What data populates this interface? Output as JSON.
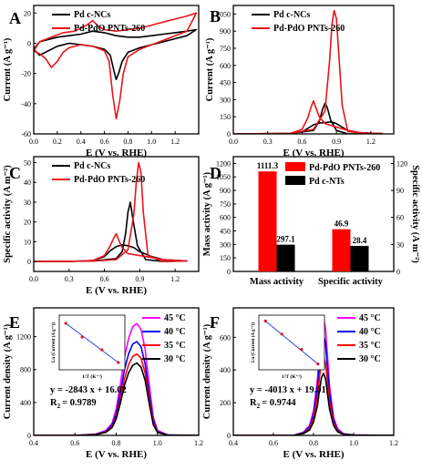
{
  "chart_data": [
    {
      "panel": "A",
      "type": "line",
      "xlabel": "E (V vs. RHE)",
      "ylabel": "Current (A g⁻¹)",
      "xlim": [
        0.0,
        1.4
      ],
      "ylim": [
        -60,
        25
      ],
      "xticks": [
        "0.0",
        "0.2",
        "0.4",
        "0.6",
        "0.8",
        "1.0",
        "1.2"
      ],
      "yticks": [
        "-60",
        "-40",
        "-20",
        "0",
        "20"
      ],
      "legend": "top-left",
      "series": [
        {
          "name": "Pd c-NCs",
          "color": "#000000",
          "x": [
            0.0,
            0.05,
            0.1,
            0.2,
            0.3,
            0.4,
            0.5,
            0.6,
            0.7,
            0.8,
            0.9,
            1.0,
            1.1,
            1.2,
            1.3,
            1.38,
            1.3,
            1.2,
            1.1,
            1.0,
            0.9,
            0.8,
            0.75,
            0.72,
            0.7,
            0.68,
            0.65,
            0.6,
            0.5,
            0.4,
            0.3,
            0.2,
            0.1,
            0.05,
            0.0
          ],
          "y": [
            -4,
            1,
            2,
            4,
            5,
            6,
            8,
            7,
            5,
            4,
            4,
            5,
            6,
            7,
            8,
            9,
            5,
            3,
            1,
            -1,
            -3,
            -6,
            -12,
            -20,
            -24,
            -18,
            -8,
            -4,
            -2,
            -1,
            0,
            -2,
            -6,
            -8,
            -4
          ]
        },
        {
          "name": "Pd-PdO PNTs-260",
          "color": "#e8141b",
          "x": [
            0.0,
            0.05,
            0.15,
            0.25,
            0.35,
            0.45,
            0.5,
            0.55,
            0.6,
            0.7,
            0.8,
            0.9,
            1.0,
            1.1,
            1.2,
            1.3,
            1.38,
            1.3,
            1.2,
            1.1,
            1.0,
            0.9,
            0.8,
            0.76,
            0.73,
            0.7,
            0.67,
            0.64,
            0.6,
            0.5,
            0.4,
            0.3,
            0.25,
            0.2,
            0.15,
            0.1,
            0.05,
            0.0
          ],
          "y": [
            -5,
            1,
            4,
            7,
            8,
            12,
            15,
            11,
            9,
            8,
            9,
            10,
            12,
            14,
            16,
            18,
            20,
            8,
            5,
            2,
            -1,
            -4,
            -9,
            -20,
            -38,
            -50,
            -34,
            -12,
            -5,
            -2,
            -1,
            -3,
            -6,
            -12,
            -16,
            -10,
            -7,
            -5
          ]
        }
      ]
    },
    {
      "panel": "B",
      "type": "line",
      "xlabel": "E (V vs. RHE)",
      "ylabel": "Current (A g⁻¹)",
      "xlim": [
        0.0,
        1.4
      ],
      "ylim": [
        0,
        1125
      ],
      "xticks": [
        "0.0",
        "0.3",
        "0.6",
        "0.9",
        "1.2"
      ],
      "yticks": [
        "0",
        "150",
        "300",
        "450",
        "600",
        "750",
        "900",
        "1050"
      ],
      "legend": "top-left",
      "series": [
        {
          "name": "Pd c-NCs",
          "color": "#000000",
          "x": [
            0.0,
            0.3,
            0.5,
            0.6,
            0.65,
            0.7,
            0.75,
            0.8,
            0.85,
            0.9,
            0.95,
            1.0,
            1.1,
            1.2,
            1.3,
            1.2,
            1.0,
            0.9,
            0.85,
            0.82,
            0.8,
            0.78,
            0.75,
            0.7,
            0.5,
            0.3,
            0.0
          ],
          "y": [
            0,
            0,
            4,
            18,
            48,
            80,
            95,
            100,
            105,
            90,
            60,
            30,
            12,
            6,
            3,
            0,
            0,
            30,
            120,
            230,
            270,
            220,
            110,
            30,
            5,
            2,
            0
          ]
        },
        {
          "name": "Pd-PdO PNTs-260",
          "color": "#e8141b",
          "x": [
            0.0,
            0.3,
            0.5,
            0.6,
            0.65,
            0.68,
            0.7,
            0.72,
            0.75,
            0.8,
            0.9,
            1.0,
            1.1,
            1.2,
            1.3,
            1.2,
            1.0,
            0.95,
            0.92,
            0.9,
            0.88,
            0.86,
            0.84,
            0.8,
            0.7,
            0.5,
            0.0
          ],
          "y": [
            0,
            0,
            5,
            40,
            140,
            240,
            290,
            230,
            150,
            90,
            60,
            30,
            12,
            6,
            3,
            0,
            20,
            250,
            700,
            1010,
            1080,
            950,
            640,
            200,
            40,
            5,
            0
          ]
        }
      ]
    },
    {
      "panel": "C",
      "type": "line",
      "xlabel": "E (V vs. RHE)",
      "ylabel": "Specific activity (A m⁻²)",
      "xlim": [
        0.0,
        1.4
      ],
      "ylim": [
        -5,
        53
      ],
      "xticks": [
        "0.0",
        "0.3",
        "0.6",
        "0.9",
        "1.2"
      ],
      "yticks": [
        "0",
        "10",
        "20",
        "30",
        "40",
        "50"
      ],
      "legend": "top-left",
      "series": [
        {
          "name": "Pd c-NCs",
          "color": "#000000",
          "x": [
            0.0,
            0.3,
            0.5,
            0.6,
            0.65,
            0.7,
            0.75,
            0.8,
            0.85,
            0.9,
            1.0,
            1.1,
            1.3,
            1.1,
            0.95,
            0.88,
            0.84,
            0.82,
            0.8,
            0.78,
            0.75,
            0.7,
            0.5,
            0.0
          ],
          "y": [
            0,
            0,
            0.5,
            2.5,
            5.5,
            7.5,
            8.5,
            8,
            7,
            5,
            2.5,
            1,
            0.3,
            0,
            1,
            8,
            22,
            30,
            25,
            14,
            5,
            1.5,
            0.3,
            0
          ]
        },
        {
          "name": "Pd-PdO PNTs-260",
          "color": "#e8141b",
          "x": [
            0.0,
            0.3,
            0.5,
            0.6,
            0.65,
            0.68,
            0.7,
            0.72,
            0.75,
            0.8,
            0.9,
            1.0,
            1.1,
            1.3,
            1.1,
            0.97,
            0.93,
            0.91,
            0.89,
            0.87,
            0.85,
            0.8,
            0.7,
            0.5,
            0.0
          ],
          "y": [
            0,
            0,
            0.5,
            3,
            8,
            12,
            14,
            11,
            7,
            4,
            3,
            2,
            1,
            0.3,
            0,
            3,
            25,
            45,
            50,
            40,
            24,
            6,
            1,
            0.2,
            0
          ]
        }
      ]
    },
    {
      "panel": "D",
      "type": "bar",
      "categories": [
        "Mass activity",
        "Specific activity"
      ],
      "ylabel": "Mass activity (A g⁻¹)",
      "y2label": "Specific activity (A m⁻²)",
      "ylim": [
        0,
        1275
      ],
      "y2lim": [
        0,
        127.5
      ],
      "yticks": [
        "0",
        "150",
        "300",
        "450",
        "600",
        "750",
        "900",
        "1050",
        "1200"
      ],
      "y2ticks": [
        "0",
        "30",
        "60",
        "90",
        "120"
      ],
      "legend": "top-right",
      "series": [
        {
          "name": "Pd-PdO PNTs-260",
          "color": "#ff0000",
          "values": [
            1111.3,
            46.9
          ],
          "labels": [
            "1111.3",
            "46.9"
          ]
        },
        {
          "name": "Pd c-NTs",
          "color": "#000000",
          "values": [
            297.1,
            28.4
          ],
          "labels": [
            "297.1",
            "28.4"
          ]
        }
      ]
    },
    {
      "panel": "E",
      "type": "line",
      "xlabel": "E (V vs. RHE)",
      "ylabel": "Current density (A g⁻¹)",
      "xlim": [
        0.4,
        1.2
      ],
      "ylim": [
        0,
        1550
      ],
      "xticks": [
        "0.4",
        "0.6",
        "0.8",
        "1.0",
        "1.2"
      ],
      "yticks": [
        "0",
        "400",
        "800",
        "1200"
      ],
      "legend": "top-right",
      "series": [
        {
          "name": "45 °C",
          "color": "#ff00ff",
          "x": [
            0.4,
            0.6,
            0.7,
            0.75,
            0.78,
            0.8,
            0.82,
            0.84,
            0.86,
            0.88,
            0.9,
            0.92,
            0.94,
            0.96,
            0.98,
            1.0,
            1.05,
            1.2
          ],
          "y": [
            0,
            0,
            15,
            60,
            150,
            320,
            620,
            950,
            1180,
            1320,
            1360,
            1290,
            1050,
            620,
            220,
            60,
            5,
            0
          ]
        },
        {
          "name": "40 °C",
          "color": "#0000ff",
          "x": [
            0.4,
            0.6,
            0.7,
            0.75,
            0.78,
            0.8,
            0.82,
            0.84,
            0.86,
            0.88,
            0.9,
            0.92,
            0.94,
            0.96,
            0.98,
            1.0,
            1.05,
            1.2
          ],
          "y": [
            0,
            0,
            12,
            50,
            125,
            270,
            520,
            800,
            990,
            1110,
            1140,
            1080,
            870,
            510,
            180,
            50,
            4,
            0
          ]
        },
        {
          "name": "35 °C",
          "color": "#ff0000",
          "x": [
            0.4,
            0.6,
            0.7,
            0.75,
            0.78,
            0.8,
            0.82,
            0.84,
            0.86,
            0.88,
            0.9,
            0.92,
            0.94,
            0.96,
            0.98,
            1.0,
            1.05,
            1.2
          ],
          "y": [
            0,
            0,
            10,
            42,
            105,
            225,
            440,
            690,
            860,
            960,
            990,
            940,
            760,
            440,
            150,
            40,
            3,
            0
          ]
        },
        {
          "name": "30 °C",
          "color": "#000000",
          "x": [
            0.4,
            0.6,
            0.7,
            0.75,
            0.78,
            0.8,
            0.82,
            0.84,
            0.86,
            0.88,
            0.9,
            0.92,
            0.94,
            0.96,
            0.98,
            1.0,
            1.05,
            1.2
          ],
          "y": [
            0,
            0,
            9,
            38,
            95,
            200,
            390,
            610,
            760,
            850,
            880,
            830,
            670,
            390,
            130,
            35,
            3,
            0
          ]
        }
      ],
      "fit_equation": "y = -2843 x + 16.02",
      "r_squared": "= 0.9789",
      "inset": {
        "xlabel": "1/T (K⁻¹)",
        "ylabel": "Ln (Current (A g⁻¹))",
        "points_x": [
          0.00314,
          0.00319,
          0.00325,
          0.0033
        ],
        "points_y": [
          7.21,
          7.06,
          6.92,
          6.78
        ],
        "xlim": [
          0.00312,
          0.00332
        ],
        "ylim": [
          6.7,
          7.3
        ]
      }
    },
    {
      "panel": "F",
      "type": "line",
      "xlabel": "E (V vs. RHE)",
      "ylabel": "Current density (A g⁻¹)",
      "xlim": [
        0.4,
        1.2
      ],
      "ylim": [
        0,
        780
      ],
      "xticks": [
        "0.4",
        "0.6",
        "0.8",
        "1.0",
        "1.2"
      ],
      "yticks": [
        "0",
        "200",
        "400",
        "600"
      ],
      "legend": "top-right",
      "series": [
        {
          "name": "45 °C",
          "color": "#ff00ff",
          "x": [
            0.4,
            0.7,
            0.75,
            0.78,
            0.8,
            0.82,
            0.83,
            0.84,
            0.85,
            0.86,
            0.87,
            0.88,
            0.9,
            0.92,
            0.95,
            1.0,
            1.2
          ],
          "y": [
            0,
            0,
            20,
            60,
            150,
            350,
            520,
            670,
            720,
            650,
            480,
            300,
            110,
            40,
            10,
            2,
            0
          ]
        },
        {
          "name": "40 °C",
          "color": "#0000ff",
          "x": [
            0.4,
            0.7,
            0.75,
            0.78,
            0.8,
            0.82,
            0.83,
            0.84,
            0.85,
            0.86,
            0.87,
            0.88,
            0.9,
            0.92,
            0.95,
            1.0,
            1.2
          ],
          "y": [
            0,
            0,
            18,
            52,
            130,
            300,
            450,
            580,
            620,
            560,
            410,
            260,
            95,
            34,
            9,
            2,
            0
          ]
        },
        {
          "name": "35 °C",
          "color": "#ff0000",
          "x": [
            0.4,
            0.7,
            0.75,
            0.78,
            0.8,
            0.82,
            0.83,
            0.84,
            0.85,
            0.86,
            0.87,
            0.88,
            0.9,
            0.92,
            0.95,
            1.0,
            1.2
          ],
          "y": [
            0,
            0,
            14,
            42,
            105,
            240,
            360,
            455,
            485,
            440,
            320,
            200,
            75,
            27,
            7,
            1,
            0
          ]
        },
        {
          "name": "30 °C",
          "color": "#000000",
          "x": [
            0.4,
            0.7,
            0.75,
            0.78,
            0.8,
            0.82,
            0.83,
            0.84,
            0.85,
            0.86,
            0.87,
            0.88,
            0.9,
            0.92,
            0.95,
            1.0,
            1.2
          ],
          "y": [
            0,
            0,
            11,
            33,
            82,
            185,
            280,
            355,
            380,
            345,
            250,
            160,
            60,
            22,
            6,
            1,
            0
          ]
        }
      ],
      "fit_equation": "y = -4013 x + 19.01",
      "r_squared": "= 0.9744",
      "inset": {
        "xlabel": "1/T (K⁻¹)",
        "ylabel": "Ln (Current (A g⁻¹))",
        "points_x": [
          0.00314,
          0.00319,
          0.00325,
          0.0033
        ],
        "points_y": [
          6.42,
          6.24,
          6.03,
          5.83
        ],
        "xlim": [
          0.00312,
          0.00332
        ],
        "ylim": [
          5.75,
          6.5
        ]
      }
    }
  ]
}
